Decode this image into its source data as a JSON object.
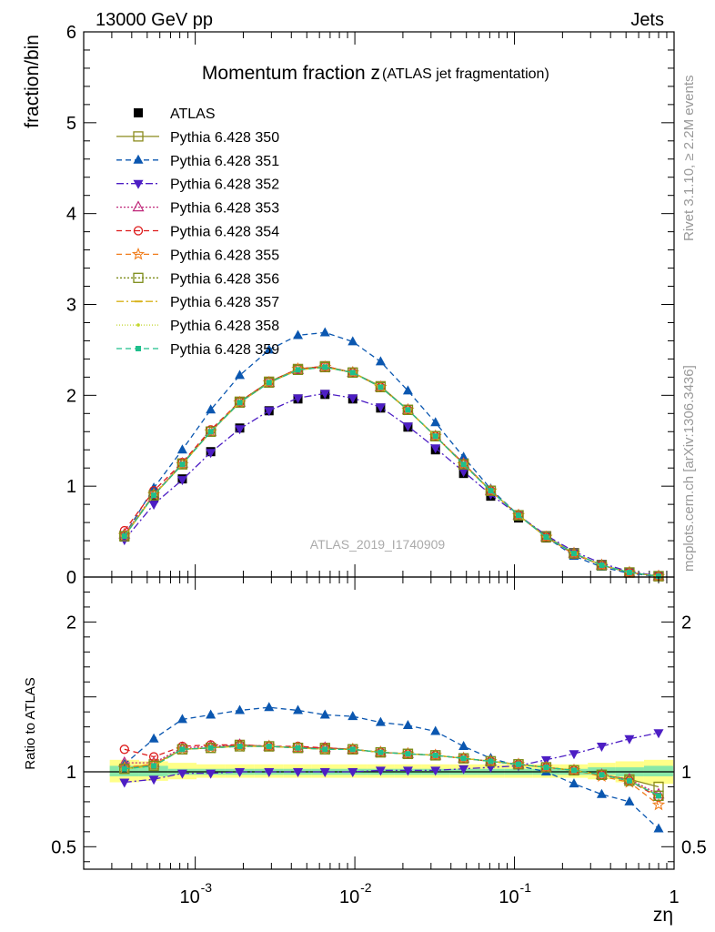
{
  "header": {
    "left_label": "13000 GeV pp",
    "right_label": "Jets",
    "side_label_top": "Rivet 3.1.10, ≥ 2.2M events",
    "side_label_bottom": "mcplots.cern.ch [arXiv:1306.3436]",
    "watermark": "ATLAS_2019_I1740909"
  },
  "chart_data": [
    {
      "type": "scatter",
      "panel": "main",
      "title": "Momentum fraction z",
      "subtitle": "(ATLAS jet fragmentation)",
      "ylabel": "fraction/bin",
      "xscale": "log",
      "xlim": [
        0.0002,
        1
      ],
      "ylim": [
        0,
        6
      ],
      "yticks": [
        "0",
        "1",
        "2",
        "3",
        "4",
        "5",
        "6"
      ],
      "legend_position": "top-left",
      "x": [
        0.00036,
        0.00055,
        0.00083,
        0.00125,
        0.0019,
        0.0029,
        0.0044,
        0.0065,
        0.0097,
        0.0145,
        0.0215,
        0.032,
        0.048,
        0.071,
        0.106,
        0.158,
        0.236,
        0.352,
        0.525,
        0.8
      ],
      "series": [
        {
          "name": "ATLAS",
          "color": "#000000",
          "marker": "square-filled",
          "dash": "none",
          "values": [
            0.44,
            0.87,
            1.08,
            1.38,
            1.64,
            1.83,
            1.96,
            2.01,
            1.96,
            1.86,
            1.65,
            1.4,
            1.14,
            0.89,
            0.65,
            0.43,
            0.25,
            0.13,
            0.05,
            0.01
          ]
        },
        {
          "name": "Pythia 6.428 350",
          "color": "#8b8b1e",
          "marker": "square-open",
          "dash": "solid",
          "values": [
            0.45,
            0.9,
            1.25,
            1.6,
            1.93,
            2.15,
            2.29,
            2.32,
            2.25,
            2.1,
            1.84,
            1.55,
            1.25,
            0.95,
            0.68,
            0.45,
            0.26,
            0.13,
            0.05,
            0.01
          ]
        },
        {
          "name": "Pythia 6.428 351",
          "color": "#0b57b0",
          "marker": "triangle-up-filled",
          "dash": "6,4",
          "values": [
            0.46,
            0.98,
            1.4,
            1.84,
            2.22,
            2.5,
            2.66,
            2.69,
            2.59,
            2.37,
            2.05,
            1.7,
            1.32,
            0.97,
            0.68,
            0.44,
            0.23,
            0.11,
            0.04,
            0.006
          ]
        },
        {
          "name": "Pythia 6.428 352",
          "color": "#4d1ec4",
          "marker": "triangle-down-filled",
          "dash": "8,3,2,3",
          "values": [
            0.41,
            0.8,
            1.07,
            1.37,
            1.63,
            1.83,
            1.97,
            2.02,
            1.97,
            1.87,
            1.66,
            1.42,
            1.16,
            0.91,
            0.68,
            0.46,
            0.28,
            0.15,
            0.06,
            0.013
          ]
        },
        {
          "name": "Pythia 6.428 353",
          "color": "#c0287a",
          "marker": "triangle-up-open",
          "dash": "2,2",
          "values": [
            0.47,
            0.91,
            1.25,
            1.6,
            1.92,
            2.14,
            2.28,
            2.31,
            2.25,
            2.09,
            1.84,
            1.55,
            1.25,
            0.95,
            0.68,
            0.44,
            0.26,
            0.13,
            0.05,
            0.01
          ]
        },
        {
          "name": "Pythia 6.428 354",
          "color": "#dd1b1b",
          "marker": "circle-open",
          "dash": "6,4",
          "values": [
            0.51,
            0.95,
            1.26,
            1.62,
            1.93,
            2.15,
            2.29,
            2.32,
            2.25,
            2.09,
            1.84,
            1.55,
            1.25,
            0.95,
            0.68,
            0.44,
            0.25,
            0.13,
            0.05,
            0.01
          ]
        },
        {
          "name": "Pythia 6.428 355",
          "color": "#f07d1c",
          "marker": "star-open",
          "dash": "6,4",
          "values": [
            0.46,
            0.91,
            1.24,
            1.6,
            1.92,
            2.14,
            2.29,
            2.31,
            2.25,
            2.09,
            1.84,
            1.55,
            1.24,
            0.95,
            0.68,
            0.44,
            0.26,
            0.13,
            0.05,
            0.008
          ]
        },
        {
          "name": "Pythia 6.428 356",
          "color": "#7d8c19",
          "marker": "square-open",
          "dash": "2,2",
          "values": [
            0.45,
            0.9,
            1.24,
            1.6,
            1.92,
            2.14,
            2.28,
            2.31,
            2.25,
            2.09,
            1.84,
            1.55,
            1.24,
            0.95,
            0.68,
            0.44,
            0.26,
            0.13,
            0.05,
            0.009
          ]
        },
        {
          "name": "Pythia 6.428 357",
          "color": "#d8b21a",
          "marker": "dash",
          "dash": "8,3,2,3",
          "values": [
            0.45,
            0.9,
            1.24,
            1.6,
            1.92,
            2.14,
            2.28,
            2.31,
            2.25,
            2.09,
            1.84,
            1.55,
            1.24,
            0.95,
            0.68,
            0.44,
            0.26,
            0.13,
            0.05,
            0.009
          ]
        },
        {
          "name": "Pythia 6.428 358",
          "color": "#c2d62a",
          "marker": "dot",
          "dash": "1,2",
          "values": [
            0.45,
            0.9,
            1.24,
            1.6,
            1.92,
            2.14,
            2.28,
            2.31,
            2.25,
            2.09,
            1.84,
            1.55,
            1.24,
            0.95,
            0.68,
            0.44,
            0.26,
            0.13,
            0.05,
            0.009
          ]
        },
        {
          "name": "Pythia 6.428 359",
          "color": "#1fbf8c",
          "marker": "square-filled-small",
          "dash": "6,4",
          "values": [
            0.45,
            0.9,
            1.24,
            1.6,
            1.92,
            2.14,
            2.28,
            2.31,
            2.25,
            2.09,
            1.84,
            1.55,
            1.24,
            0.95,
            0.68,
            0.44,
            0.26,
            0.13,
            0.05,
            0.009
          ]
        }
      ]
    },
    {
      "type": "scatter",
      "panel": "ratio",
      "ylabel": "Ratio to ATLAS",
      "xlabel": "zη",
      "xscale": "log",
      "xlim": [
        0.0002,
        1
      ],
      "ylim": [
        0.35,
        2.3
      ],
      "yticks": [
        "0.5",
        "1",
        "2"
      ],
      "xticks": [
        "10",
        "10",
        "10",
        "1"
      ],
      "xtick_exponents": [
        "-3",
        "-2",
        "-1",
        ""
      ],
      "x": [
        0.00036,
        0.00055,
        0.00083,
        0.00125,
        0.0019,
        0.0029,
        0.0044,
        0.0065,
        0.0097,
        0.0145,
        0.0215,
        0.032,
        0.048,
        0.071,
        0.106,
        0.158,
        0.236,
        0.352,
        0.525,
        0.8
      ],
      "band_outer": [
        [
          0.93,
          1.08
        ],
        [
          0.94,
          1.07
        ],
        [
          0.95,
          1.06
        ],
        [
          0.96,
          1.05
        ],
        [
          0.96,
          1.05
        ],
        [
          0.96,
          1.05
        ],
        [
          0.96,
          1.05
        ],
        [
          0.96,
          1.05
        ],
        [
          0.96,
          1.05
        ],
        [
          0.96,
          1.05
        ],
        [
          0.96,
          1.05
        ],
        [
          0.96,
          1.05
        ],
        [
          0.96,
          1.05
        ],
        [
          0.96,
          1.05
        ],
        [
          0.96,
          1.05
        ],
        [
          0.96,
          1.05
        ],
        [
          0.96,
          1.05
        ],
        [
          0.95,
          1.06
        ],
        [
          0.93,
          1.07
        ],
        [
          0.92,
          1.08
        ]
      ],
      "band_inner": [
        [
          0.97,
          1.04
        ],
        [
          0.97,
          1.04
        ],
        [
          0.98,
          1.02
        ],
        [
          0.98,
          1.02
        ],
        [
          0.98,
          1.02
        ],
        [
          0.98,
          1.02
        ],
        [
          0.98,
          1.02
        ],
        [
          0.98,
          1.02
        ],
        [
          0.98,
          1.02
        ],
        [
          0.98,
          1.02
        ],
        [
          0.98,
          1.02
        ],
        [
          0.98,
          1.02
        ],
        [
          0.98,
          1.02
        ],
        [
          0.98,
          1.02
        ],
        [
          0.98,
          1.02
        ],
        [
          0.98,
          1.02
        ],
        [
          0.98,
          1.02
        ],
        [
          0.98,
          1.03
        ],
        [
          0.97,
          1.03
        ],
        [
          0.97,
          1.04
        ]
      ],
      "series": [
        {
          "name": "Pythia 6.428 350",
          "color": "#8b8b1e",
          "marker": "square-open",
          "dash": "solid",
          "values": [
            1.02,
            1.05,
            1.15,
            1.16,
            1.18,
            1.17,
            1.16,
            1.16,
            1.15,
            1.13,
            1.12,
            1.11,
            1.09,
            1.07,
            1.05,
            1.03,
            1.01,
            0.98,
            0.95,
            0.9
          ]
        },
        {
          "name": "Pythia 6.428 351",
          "color": "#0b57b0",
          "marker": "triangle-up-filled",
          "dash": "6,4",
          "values": [
            1.05,
            1.22,
            1.35,
            1.38,
            1.41,
            1.43,
            1.41,
            1.38,
            1.37,
            1.33,
            1.31,
            1.27,
            1.17,
            1.09,
            1.04,
            1.0,
            0.92,
            0.85,
            0.8,
            0.62
          ]
        },
        {
          "name": "Pythia 6.428 352",
          "color": "#4d1ec4",
          "marker": "triangle-down-filled",
          "dash": "8,3,2,3",
          "values": [
            0.93,
            0.95,
            0.99,
            0.99,
            1.0,
            1.0,
            1.0,
            1.0,
            1.0,
            1.01,
            1.01,
            1.01,
            1.02,
            1.03,
            1.04,
            1.08,
            1.12,
            1.17,
            1.22,
            1.26
          ]
        },
        {
          "name": "Pythia 6.428 353",
          "color": "#c0287a",
          "marker": "triangle-up-open",
          "dash": "2,2",
          "values": [
            1.06,
            1.06,
            1.16,
            1.17,
            1.18,
            1.17,
            1.16,
            1.16,
            1.15,
            1.13,
            1.12,
            1.11,
            1.09,
            1.07,
            1.05,
            1.03,
            1.01,
            0.98,
            0.95,
            0.85
          ]
        },
        {
          "name": "Pythia 6.428 354",
          "color": "#dd1b1b",
          "marker": "circle-open",
          "dash": "6,4",
          "values": [
            1.15,
            1.1,
            1.17,
            1.18,
            1.18,
            1.17,
            1.17,
            1.16,
            1.15,
            1.13,
            1.12,
            1.11,
            1.09,
            1.07,
            1.05,
            1.03,
            1.01,
            0.98,
            0.94,
            0.83
          ]
        },
        {
          "name": "Pythia 6.428 355",
          "color": "#f07d1c",
          "marker": "star-open",
          "dash": "6,4",
          "values": [
            1.03,
            1.05,
            1.15,
            1.16,
            1.17,
            1.17,
            1.16,
            1.15,
            1.15,
            1.13,
            1.12,
            1.11,
            1.09,
            1.07,
            1.05,
            1.03,
            1.01,
            0.97,
            0.93,
            0.78
          ]
        },
        {
          "name": "Pythia 6.428 356",
          "color": "#7d8c19",
          "marker": "square-open",
          "dash": "2,2",
          "values": [
            1.02,
            1.04,
            1.15,
            1.16,
            1.17,
            1.17,
            1.16,
            1.15,
            1.15,
            1.13,
            1.12,
            1.11,
            1.09,
            1.07,
            1.05,
            1.03,
            1.01,
            0.98,
            0.94,
            0.84
          ]
        },
        {
          "name": "Pythia 6.428 357",
          "color": "#d8b21a",
          "marker": "dash",
          "dash": "8,3,2,3",
          "values": [
            1.02,
            1.04,
            1.15,
            1.16,
            1.17,
            1.17,
            1.16,
            1.15,
            1.15,
            1.13,
            1.12,
            1.11,
            1.09,
            1.07,
            1.05,
            1.03,
            1.01,
            0.98,
            0.94,
            0.84
          ]
        },
        {
          "name": "Pythia 6.428 358",
          "color": "#c2d62a",
          "marker": "dot",
          "dash": "1,2",
          "values": [
            1.02,
            1.04,
            1.15,
            1.16,
            1.17,
            1.17,
            1.16,
            1.15,
            1.15,
            1.13,
            1.12,
            1.11,
            1.09,
            1.07,
            1.05,
            1.03,
            1.01,
            0.98,
            0.94,
            0.84
          ]
        },
        {
          "name": "Pythia 6.428 359",
          "color": "#1fbf8c",
          "marker": "square-filled-small",
          "dash": "6,4",
          "values": [
            1.02,
            1.04,
            1.15,
            1.16,
            1.17,
            1.17,
            1.16,
            1.15,
            1.15,
            1.13,
            1.12,
            1.11,
            1.09,
            1.07,
            1.05,
            1.03,
            1.01,
            0.98,
            0.94,
            0.84
          ]
        }
      ]
    }
  ]
}
